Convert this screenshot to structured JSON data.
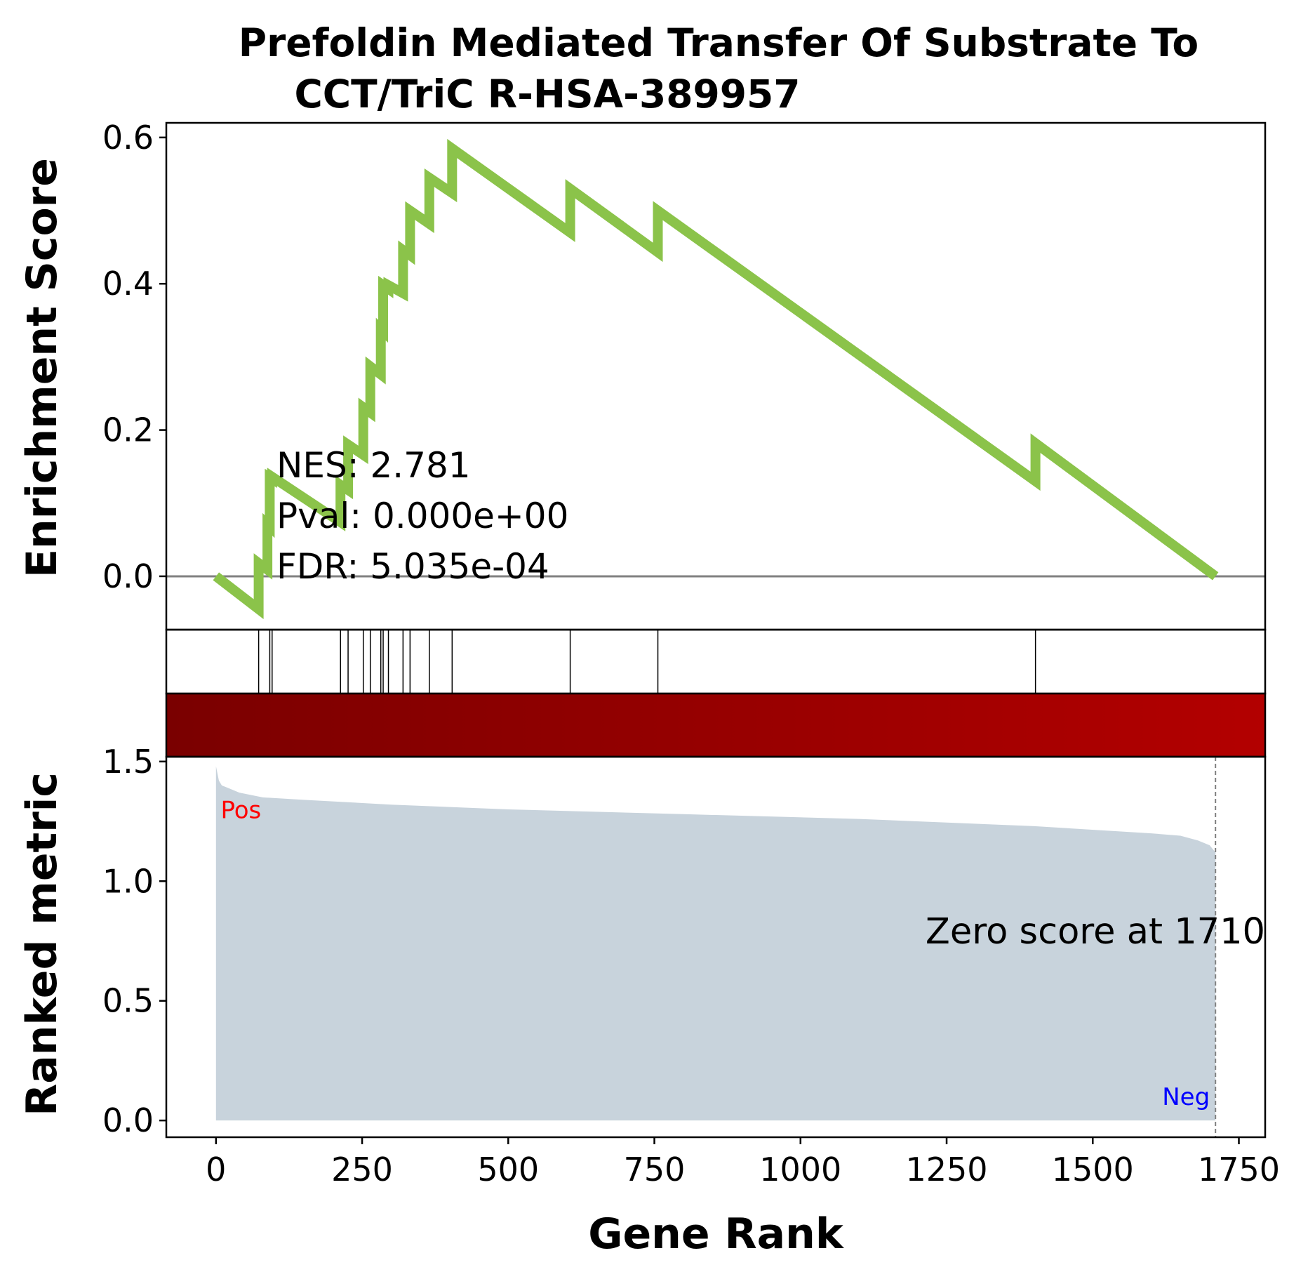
{
  "chart_data": {
    "type": "line",
    "title_lines": [
      "Prefoldin Mediated Transfer Of Substrate To",
      "CCT/TriC R-HSA-389957"
    ],
    "xlabel": "Gene Rank",
    "ylabel_top": "Enrichment Score",
    "ylabel_bottom": "Ranked metric",
    "xlim": [
      -85,
      1795
    ],
    "ylim_top": [
      -0.073,
      0.62
    ],
    "ylim_bottom": [
      -0.07,
      1.52
    ],
    "x_ticks": [
      0,
      250,
      500,
      750,
      1000,
      1250,
      1500,
      1750
    ],
    "x_tick_labels": [
      "0",
      "250",
      "500",
      "750",
      "1000",
      "1250",
      "1500",
      "1750"
    ],
    "y_ticks_top": [
      0.0,
      0.2,
      0.4,
      0.6
    ],
    "y_tick_labels_top": [
      "0.0",
      "0.2",
      "0.4",
      "0.6"
    ],
    "y_ticks_bottom": [
      0.0,
      0.5,
      1.0,
      1.5
    ],
    "y_tick_labels_bottom": [
      "0.0",
      "0.5",
      "1.0",
      "1.5"
    ],
    "running_es": {
      "color": "#8bc34a",
      "x": [
        0,
        73,
        73,
        88,
        88,
        92,
        92,
        96,
        96,
        213,
        213,
        226,
        226,
        252,
        252,
        264,
        264,
        282,
        282,
        286,
        286,
        295,
        295,
        320,
        320,
        332,
        332,
        365,
        365,
        404,
        404,
        606,
        606,
        756,
        756,
        1402,
        1402,
        1710
      ],
      "y": [
        0.0,
        -0.045,
        0.018,
        0.009,
        0.071,
        0.068,
        0.135,
        0.133,
        0.136,
        0.074,
        0.125,
        0.118,
        0.18,
        0.166,
        0.231,
        0.224,
        0.287,
        0.276,
        0.338,
        0.335,
        0.398,
        0.393,
        0.398,
        0.387,
        0.446,
        0.439,
        0.5,
        0.482,
        0.545,
        0.524,
        0.585,
        0.47,
        0.53,
        0.443,
        0.5,
        0.13,
        0.182,
        0.0
      ]
    },
    "hit_positions": [
      73,
      92,
      96,
      213,
      226,
      252,
      264,
      282,
      286,
      295,
      320,
      332,
      365,
      404,
      606,
      756,
      1402
    ],
    "ranked_metric": {
      "fill_color": "#c8d3dc",
      "x": [
        0,
        5,
        10,
        20,
        40,
        80,
        150,
        300,
        500,
        800,
        1100,
        1400,
        1600,
        1650,
        1680,
        1700,
        1710
      ],
      "y": [
        1.48,
        1.42,
        1.4,
        1.39,
        1.37,
        1.35,
        1.34,
        1.32,
        1.3,
        1.28,
        1.26,
        1.23,
        1.2,
        1.19,
        1.17,
        1.15,
        1.12
      ]
    },
    "colorbar": {
      "start_color": "#7a0000",
      "end_color": "#b30000"
    },
    "stats": [
      "NES: 2.781",
      "Pval: 0.000e+00",
      "FDR: 5.035e-04"
    ],
    "pos_label": "Pos",
    "neg_label": "Neg",
    "pos_color": "#ff0000",
    "neg_color": "#0000ff",
    "zero_score_text": "Zero score at 1710",
    "zero_score_x": 1710
  }
}
